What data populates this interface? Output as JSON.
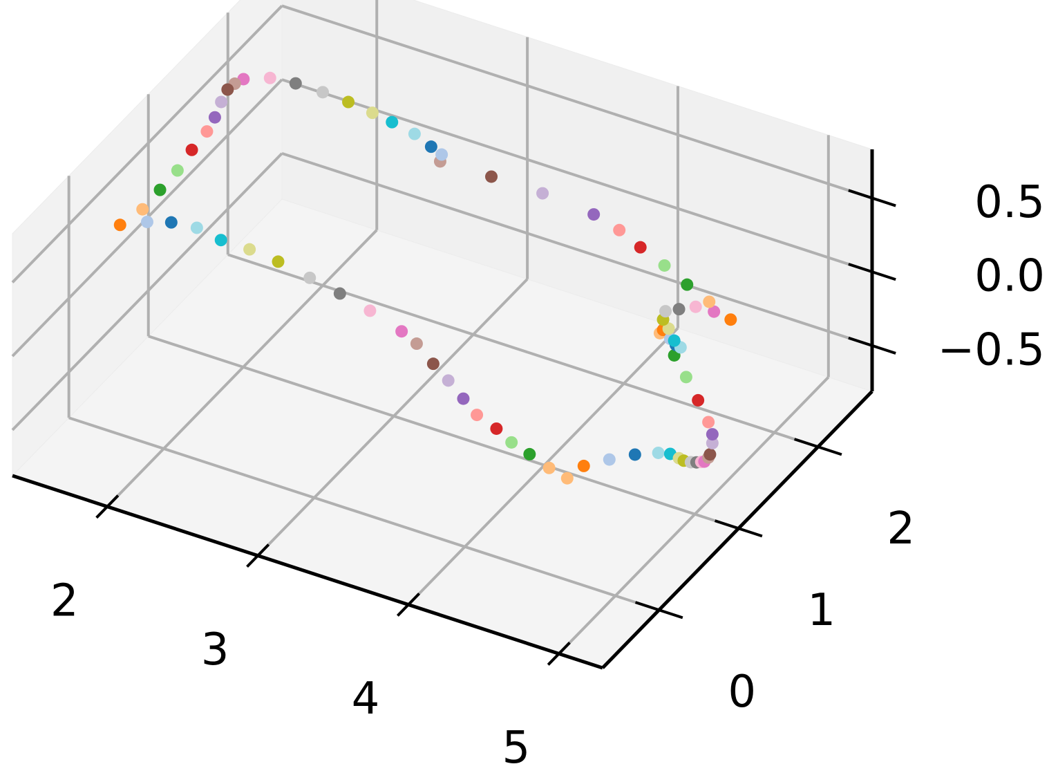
{
  "chart_data": {
    "type": "scatter3d",
    "x": [
      1.71,
      1.89,
      2.05,
      2.22,
      2.38,
      2.57,
      2.76,
      2.97,
      3.17,
      3.37,
      3.58,
      3.68,
      3.79,
      3.89,
      3.99,
      4.08,
      4.21,
      4.31,
      4.43,
      4.56,
      4.68,
      4.79,
      4.96,
      5.13,
      5,
      5,
      5,
      5,
      5,
      5,
      5,
      5,
      5,
      5,
      5,
      5,
      5,
      5,
      5,
      5,
      5,
      5,
      5,
      5,
      5,
      5,
      5,
      5,
      5,
      5,
      5,
      5,
      5,
      5,
      4.42,
      4.27,
      4.11,
      3.97,
      3.8,
      3.46,
      3.12,
      2.78,
      2.79,
      2.72,
      2.61,
      2.46,
      2.33,
      2.17,
      2.0,
      1.82,
      1.65,
      1.5,
      1.5,
      1.5,
      1.5,
      1.5,
      1.5,
      1.5,
      1.5,
      1.5,
      1.5
    ],
    "y": [
      0,
      0,
      0,
      0,
      0,
      0,
      0,
      0,
      0,
      0,
      0,
      0,
      0,
      0,
      0,
      0,
      0,
      0,
      0,
      0,
      0,
      0,
      0,
      0,
      0.54,
      0.69,
      0.8,
      0.86,
      0.95,
      1.02,
      1.08,
      1.12,
      1.17,
      1.19,
      1.22,
      1.22,
      1.17,
      1.04,
      0.89,
      0.74,
      0.56,
      0.6,
      0.69,
      0.76,
      0.82,
      0.74,
      0.67,
      0.6,
      0.63,
      0.8,
      1.01,
      1.24,
      1.18,
      1.45,
      2,
      2,
      2,
      2,
      2,
      2,
      2,
      2,
      2,
      2,
      2,
      2,
      2,
      2,
      2,
      2,
      2,
      1.95,
      1.84,
      1.75,
      1.67,
      1.59,
      1.49,
      1.3,
      1.12,
      0.9,
      0.68
    ],
    "z": [
      0.61,
      0.69,
      0.74,
      0.76,
      0.73,
      0.73,
      0.71,
      0.67,
      0.63,
      0.58,
      0.51,
      0.46,
      0.36,
      0.28,
      0.19,
      0.11,
      0.06,
      0,
      -0.04,
      -0.09,
      -0.12,
      0,
      0.1,
      0.19,
      -0.14,
      -0.23,
      -0.32,
      -0.37,
      -0.43,
      -0.47,
      -0.5,
      -0.52,
      -0.52,
      -0.51,
      -0.45,
      -0.39,
      -0.28,
      -0.06,
      0.18,
      0.41,
      0.66,
      0.66,
      0.55,
      0.47,
      0.42,
      0.51,
      0.63,
      0.73,
      0.77,
      0.69,
      0.59,
      0.43,
      0.53,
      0.26,
      0,
      0.08,
      0.15,
      0.22,
      0.27,
      0.3,
      0.3,
      0.29,
      0.34,
      0.37,
      0.42,
      0.45,
      0.47,
      0.49,
      0.5,
      0.5,
      0.48,
      0.45,
      0.48,
      0.49,
      0.45,
      0.39,
      0.35,
      0.33,
      0.29,
      0.28,
      0.27
    ],
    "colors": [
      "#ff7f0e",
      "#aec7e8",
      "#1f77b4",
      "#9edae5",
      "#17becf",
      "#dbdb8d",
      "#bcbd22",
      "#c7c7c7",
      "#7f7f7f",
      "#f7b6d2",
      "#e377c2",
      "#c49c94",
      "#8c564b",
      "#c5b0d5",
      "#9467bd",
      "#ff9896",
      "#d62728",
      "#98df8a",
      "#2ca02c",
      "#ffbb78",
      "#ffbb78",
      "#ff7f0e",
      "#aec7e8",
      "#1f77b4",
      "#9edae5",
      "#17becf",
      "#dbdb8d",
      "#bcbd22",
      "#c7c7c7",
      "#7f7f7f",
      "#f7b6d2",
      "#e377c2",
      "#c49c94",
      "#8c564b",
      "#c5b0d5",
      "#9467bd",
      "#ff9896",
      "#d62728",
      "#98df8a",
      "#2ca02c",
      "#ffbb78",
      "#ff7f0e",
      "#aec7e8",
      "#1f77b4",
      "#9edae5",
      "#17becf",
      "#dbdb8d",
      "#bcbd22",
      "#c7c7c7",
      "#7f7f7f",
      "#f7b6d2",
      "#e377c2",
      "#ffbb78",
      "#ff7f0e",
      "#2ca02c",
      "#98df8a",
      "#d62728",
      "#ff9896",
      "#9467bd",
      "#c5b0d5",
      "#8c564b",
      "#c49c94",
      "#aec7e8",
      "#1f77b4",
      "#9edae5",
      "#17becf",
      "#dbdb8d",
      "#bcbd22",
      "#c7c7c7",
      "#7f7f7f",
      "#f7b6d2",
      "#e377c2",
      "#c49c94",
      "#8c564b",
      "#c5b0d5",
      "#9467bd",
      "#ff9896",
      "#d62728",
      "#98df8a",
      "#2ca02c",
      "#ffbb78"
    ],
    "xlim": [
      1.37,
      5.29
    ],
    "ylim": [
      -0.71,
      2.68
    ],
    "zlim": [
      -0.81,
      0.83
    ],
    "xticks": [
      2,
      3,
      4,
      5
    ],
    "yticks": [
      0,
      1,
      2
    ],
    "zticks": [
      {
        "value": -0.5,
        "label": "−0.5"
      },
      {
        "value": 0,
        "label": "0.0"
      },
      0.5
    ],
    "grid": true
  }
}
